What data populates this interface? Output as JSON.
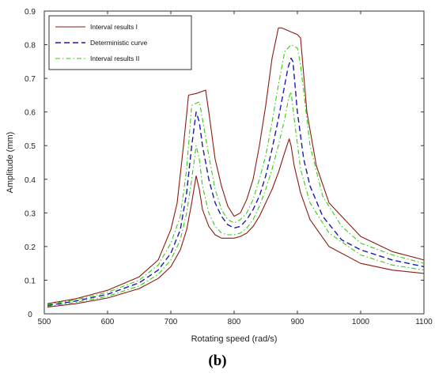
{
  "caption": "(b)",
  "chart_data": {
    "type": "line",
    "xlabel": "Rotating speed (rad/s)",
    "ylabel": "Amplitude (mm)",
    "xlim": [
      500,
      1100
    ],
    "ylim": [
      0,
      0.9
    ],
    "xticks": [
      "500",
      "600",
      "700",
      "800",
      "900",
      "1000",
      "1100"
    ],
    "yticks": [
      "0",
      "0.1",
      "0.2",
      "0.3",
      "0.4",
      "0.5",
      "0.6",
      "0.7",
      "0.8",
      "0.9"
    ],
    "grid": false,
    "legend_position": "top-left",
    "series": [
      {
        "name": "Interval results I",
        "style": "solid",
        "color": "#8b1a10",
        "x": [
          505,
          550,
          600,
          650,
          680,
          700,
          710,
          720,
          728,
          740,
          755,
          760,
          770,
          780,
          790,
          800,
          810,
          820,
          830,
          840,
          850,
          860,
          870,
          875,
          900,
          905,
          915,
          930,
          950,
          1000,
          1050,
          1100
        ],
        "y": [
          0.03,
          0.045,
          0.07,
          0.11,
          0.16,
          0.25,
          0.33,
          0.5,
          0.65,
          0.655,
          0.665,
          0.6,
          0.46,
          0.38,
          0.32,
          0.29,
          0.3,
          0.34,
          0.4,
          0.5,
          0.62,
          0.76,
          0.85,
          0.85,
          0.83,
          0.82,
          0.6,
          0.44,
          0.33,
          0.23,
          0.185,
          0.16
        ]
      },
      {
        "name": "Deterministic curve",
        "style": "dashed",
        "color": "#1a1ab0",
        "x": [
          505,
          550,
          600,
          650,
          680,
          700,
          715,
          725,
          733,
          740,
          745,
          750,
          760,
          770,
          780,
          790,
          800,
          810,
          820,
          830,
          840,
          850,
          860,
          870,
          880,
          885,
          890,
          893,
          900,
          910,
          920,
          940,
          970,
          1000,
          1050,
          1100
        ],
        "y": [
          0.025,
          0.038,
          0.058,
          0.092,
          0.13,
          0.18,
          0.25,
          0.36,
          0.5,
          0.6,
          0.57,
          0.5,
          0.4,
          0.33,
          0.29,
          0.265,
          0.255,
          0.26,
          0.28,
          0.31,
          0.35,
          0.41,
          0.49,
          0.58,
          0.68,
          0.73,
          0.76,
          0.75,
          0.6,
          0.46,
          0.38,
          0.29,
          0.22,
          0.19,
          0.16,
          0.14
        ]
      },
      {
        "name": "Interval results II",
        "style": "dashdot",
        "color": "#33cc11",
        "x": [
          505,
          550,
          600,
          650,
          680,
          700,
          715,
          725,
          733,
          745,
          748,
          760,
          770,
          780,
          790,
          800,
          810,
          820,
          830,
          840,
          850,
          860,
          870,
          880,
          890,
          900,
          905,
          920,
          940,
          970,
          1000,
          1050,
          1100
        ],
        "y": [
          0.028,
          0.042,
          0.064,
          0.1,
          0.145,
          0.21,
          0.29,
          0.43,
          0.62,
          0.63,
          0.6,
          0.47,
          0.37,
          0.31,
          0.28,
          0.27,
          0.28,
          0.3,
          0.34,
          0.4,
          0.47,
          0.57,
          0.68,
          0.78,
          0.8,
          0.79,
          0.74,
          0.5,
          0.35,
          0.26,
          0.21,
          0.175,
          0.15
        ]
      },
      {
        "name": "",
        "style": "dashdot",
        "color": "#33cc11",
        "x": [
          505,
          550,
          600,
          650,
          680,
          700,
          715,
          725,
          733,
          738,
          740,
          745,
          750,
          760,
          770,
          780,
          790,
          800,
          810,
          820,
          830,
          840,
          850,
          860,
          870,
          880,
          886,
          890,
          895,
          905,
          920,
          950,
          1000,
          1050,
          1100
        ],
        "y": [
          0.022,
          0.034,
          0.052,
          0.083,
          0.117,
          0.16,
          0.22,
          0.3,
          0.4,
          0.47,
          0.5,
          0.46,
          0.38,
          0.3,
          0.26,
          0.24,
          0.235,
          0.235,
          0.24,
          0.255,
          0.28,
          0.32,
          0.37,
          0.43,
          0.5,
          0.58,
          0.64,
          0.66,
          0.58,
          0.43,
          0.33,
          0.24,
          0.175,
          0.145,
          0.13
        ]
      },
      {
        "name": "",
        "style": "solid",
        "color": "#8b1a10",
        "x": [
          505,
          550,
          600,
          650,
          680,
          700,
          715,
          725,
          733,
          740,
          745,
          750,
          760,
          770,
          780,
          790,
          800,
          810,
          820,
          830,
          840,
          850,
          860,
          870,
          880,
          887,
          890,
          895,
          905,
          920,
          950,
          1000,
          1050,
          1100
        ],
        "y": [
          0.02,
          0.03,
          0.047,
          0.075,
          0.105,
          0.14,
          0.19,
          0.25,
          0.33,
          0.41,
          0.37,
          0.31,
          0.26,
          0.235,
          0.225,
          0.225,
          0.225,
          0.23,
          0.24,
          0.26,
          0.29,
          0.33,
          0.37,
          0.42,
          0.48,
          0.52,
          0.5,
          0.44,
          0.36,
          0.28,
          0.2,
          0.15,
          0.13,
          0.12
        ]
      }
    ]
  }
}
